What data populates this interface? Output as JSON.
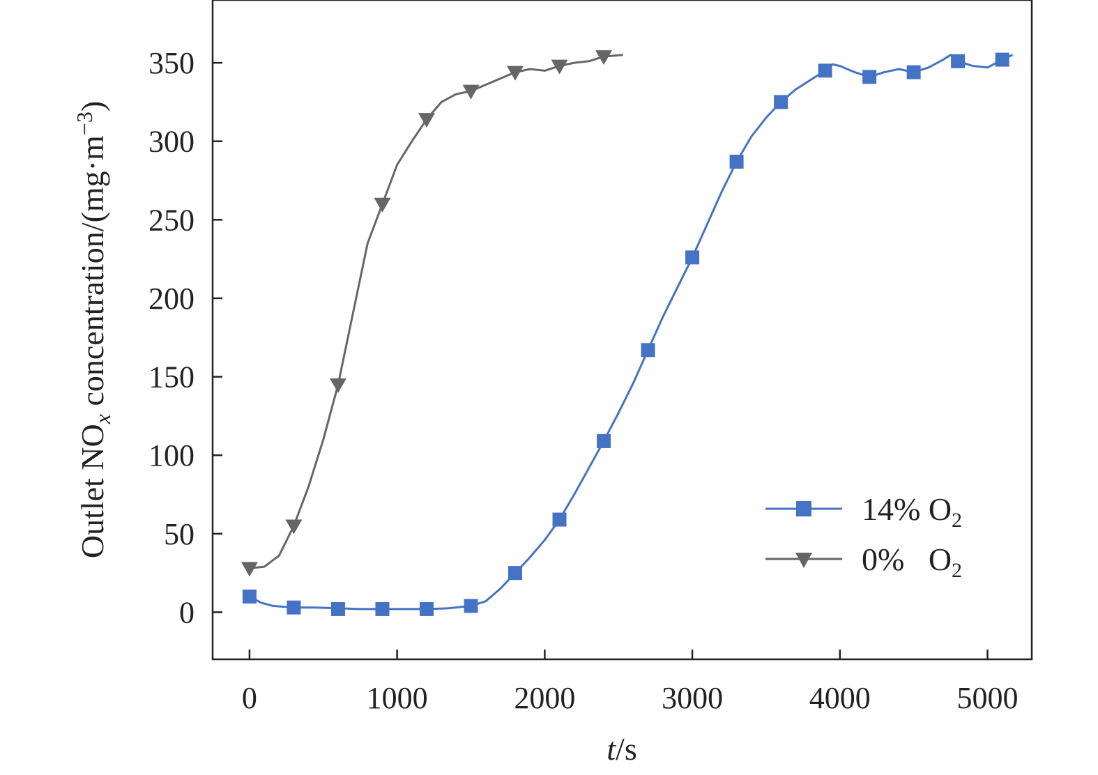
{
  "chart_data": {
    "type": "line",
    "xlabel": "t/s",
    "ylabel": "Outlet NOx concentration/(mg·m−3)",
    "xlim": [
      -250,
      5300
    ],
    "ylim": [
      -30,
      390
    ],
    "xticks": [
      0,
      1000,
      2000,
      3000,
      4000,
      5000
    ],
    "yticks": [
      0,
      50,
      100,
      150,
      200,
      250,
      300,
      350
    ],
    "grid": false,
    "legend_position": "bottom-right",
    "series": [
      {
        "name": "14% O2",
        "color": "#4472c4",
        "marker": "square",
        "line": [
          [
            0,
            10
          ],
          [
            80,
            6
          ],
          [
            160,
            4
          ],
          [
            300,
            3
          ],
          [
            450,
            3
          ],
          [
            600,
            2.5
          ],
          [
            750,
            2
          ],
          [
            900,
            2
          ],
          [
            1050,
            2
          ],
          [
            1200,
            2
          ],
          [
            1350,
            2.5
          ],
          [
            1500,
            4
          ],
          [
            1600,
            7
          ],
          [
            1700,
            15
          ],
          [
            1800,
            25
          ],
          [
            1900,
            35
          ],
          [
            2000,
            46
          ],
          [
            2100,
            59
          ],
          [
            2200,
            75
          ],
          [
            2300,
            92
          ],
          [
            2400,
            109
          ],
          [
            2500,
            127
          ],
          [
            2600,
            146
          ],
          [
            2700,
            167
          ],
          [
            2800,
            188
          ],
          [
            2900,
            207
          ],
          [
            3000,
            226
          ],
          [
            3100,
            247
          ],
          [
            3200,
            268
          ],
          [
            3300,
            287
          ],
          [
            3400,
            303
          ],
          [
            3500,
            315
          ],
          [
            3600,
            325
          ],
          [
            3700,
            333
          ],
          [
            3800,
            339
          ],
          [
            3900,
            345
          ],
          [
            3950,
            349
          ],
          [
            4000,
            348
          ],
          [
            4100,
            344
          ],
          [
            4200,
            341
          ],
          [
            4300,
            344
          ],
          [
            4400,
            346
          ],
          [
            4500,
            344
          ],
          [
            4600,
            347
          ],
          [
            4700,
            352
          ],
          [
            4750,
            355
          ],
          [
            4800,
            351
          ],
          [
            4900,
            348
          ],
          [
            5000,
            347
          ],
          [
            5100,
            352
          ],
          [
            5170,
            355
          ]
        ],
        "markers": [
          [
            0,
            10
          ],
          [
            300,
            3
          ],
          [
            600,
            2
          ],
          [
            900,
            2
          ],
          [
            1200,
            2
          ],
          [
            1500,
            4
          ],
          [
            1800,
            25
          ],
          [
            2100,
            59
          ],
          [
            2400,
            109
          ],
          [
            2700,
            167
          ],
          [
            3000,
            226
          ],
          [
            3300,
            287
          ],
          [
            3600,
            325
          ],
          [
            3900,
            345
          ],
          [
            4200,
            341
          ],
          [
            4500,
            344
          ],
          [
            4800,
            351
          ],
          [
            5100,
            352
          ]
        ]
      },
      {
        "name": "0%   O2",
        "color": "#666666",
        "marker": "triangle-down",
        "line": [
          [
            0,
            28
          ],
          [
            100,
            29
          ],
          [
            200,
            36
          ],
          [
            300,
            55
          ],
          [
            400,
            80
          ],
          [
            500,
            110
          ],
          [
            600,
            145
          ],
          [
            700,
            190
          ],
          [
            800,
            235
          ],
          [
            900,
            260
          ],
          [
            1000,
            285
          ],
          [
            1100,
            300
          ],
          [
            1200,
            314
          ],
          [
            1300,
            325
          ],
          [
            1400,
            330
          ],
          [
            1500,
            332
          ],
          [
            1600,
            336
          ],
          [
            1700,
            340
          ],
          [
            1800,
            344
          ],
          [
            1900,
            346
          ],
          [
            2000,
            345
          ],
          [
            2100,
            348
          ],
          [
            2200,
            350
          ],
          [
            2300,
            351
          ],
          [
            2400,
            354
          ],
          [
            2530,
            355
          ]
        ],
        "markers": [
          [
            0,
            28
          ],
          [
            300,
            55
          ],
          [
            600,
            145
          ],
          [
            900,
            260
          ],
          [
            1200,
            314
          ],
          [
            1500,
            332
          ],
          [
            1800,
            344
          ],
          [
            2100,
            348
          ],
          [
            2400,
            354
          ]
        ]
      }
    ]
  }
}
